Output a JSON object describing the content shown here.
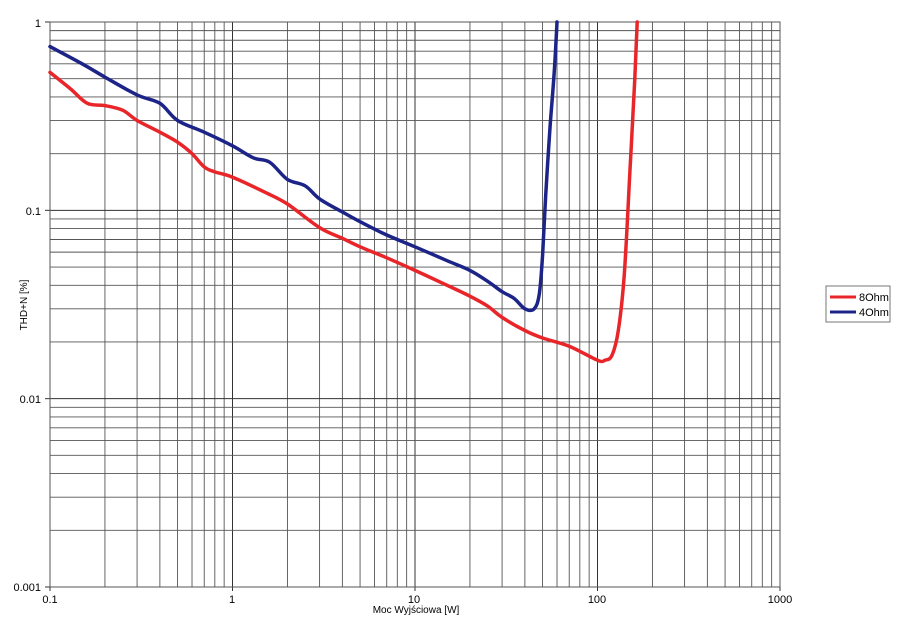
{
  "chart_data": {
    "type": "line",
    "title": "",
    "xlabel": "Moc Wyjściowa [W]",
    "ylabel": "THD+N [%]",
    "xscale": "log",
    "yscale": "log",
    "xlim": [
      0.1,
      1000
    ],
    "ylim": [
      0.001,
      1
    ],
    "x_ticks": [
      "0.1",
      "1",
      "10",
      "100",
      "1000"
    ],
    "y_ticks": [
      "1",
      "0.1",
      "0.01",
      "0.001"
    ],
    "grid": true,
    "legend_position": "right",
    "series": [
      {
        "name": "8Ohm",
        "color": "#e8262a",
        "points": [
          [
            0.1,
            0.54
          ],
          [
            0.13,
            0.44
          ],
          [
            0.16,
            0.37
          ],
          [
            0.2,
            0.36
          ],
          [
            0.25,
            0.34
          ],
          [
            0.3,
            0.3
          ],
          [
            0.4,
            0.26
          ],
          [
            0.5,
            0.23
          ],
          [
            0.6,
            0.2
          ],
          [
            0.7,
            0.17
          ],
          [
            0.8,
            0.16
          ],
          [
            1,
            0.15
          ],
          [
            1.5,
            0.125
          ],
          [
            2,
            0.108
          ],
          [
            3,
            0.081
          ],
          [
            4,
            0.071
          ],
          [
            5,
            0.064
          ],
          [
            7,
            0.056
          ],
          [
            10,
            0.048
          ],
          [
            15,
            0.04
          ],
          [
            20,
            0.035
          ],
          [
            25,
            0.031
          ],
          [
            30,
            0.027
          ],
          [
            40,
            0.023
          ],
          [
            50,
            0.021
          ],
          [
            70,
            0.019
          ],
          [
            100,
            0.016
          ],
          [
            110,
            0.016
          ],
          [
            120,
            0.017
          ],
          [
            130,
            0.023
          ],
          [
            140,
            0.045
          ],
          [
            150,
            0.15
          ],
          [
            160,
            0.5
          ],
          [
            165,
            1.0
          ]
        ]
      },
      {
        "name": "4Ohm",
        "color": "#1c2488",
        "points": [
          [
            0.1,
            0.74
          ],
          [
            0.15,
            0.6
          ],
          [
            0.2,
            0.51
          ],
          [
            0.3,
            0.41
          ],
          [
            0.4,
            0.37
          ],
          [
            0.5,
            0.3
          ],
          [
            0.7,
            0.26
          ],
          [
            1,
            0.22
          ],
          [
            1.3,
            0.19
          ],
          [
            1.6,
            0.18
          ],
          [
            2,
            0.146
          ],
          [
            2.5,
            0.135
          ],
          [
            3,
            0.115
          ],
          [
            4,
            0.098
          ],
          [
            5,
            0.087
          ],
          [
            7,
            0.074
          ],
          [
            10,
            0.064
          ],
          [
            15,
            0.054
          ],
          [
            20,
            0.048
          ],
          [
            25,
            0.042
          ],
          [
            30,
            0.037
          ],
          [
            35,
            0.034
          ],
          [
            40,
            0.03
          ],
          [
            45,
            0.03
          ],
          [
            48,
            0.036
          ],
          [
            50,
            0.058
          ],
          [
            52,
            0.12
          ],
          [
            55,
            0.28
          ],
          [
            58,
            0.55
          ],
          [
            60,
            1.0
          ]
        ]
      }
    ]
  },
  "axes": {
    "x_label": "Moc Wyjściowa [W]",
    "y_label": "THD+N [%]",
    "x_tick_labels": [
      "0.1",
      "1",
      "10",
      "100",
      "1000"
    ],
    "y_tick_labels": [
      "1",
      "0.1",
      "0.01",
      "0.001"
    ]
  },
  "legend": {
    "items": [
      {
        "label": "8Ohm",
        "color": "#e8262a"
      },
      {
        "label": "4Ohm",
        "color": "#1c2488"
      }
    ]
  }
}
